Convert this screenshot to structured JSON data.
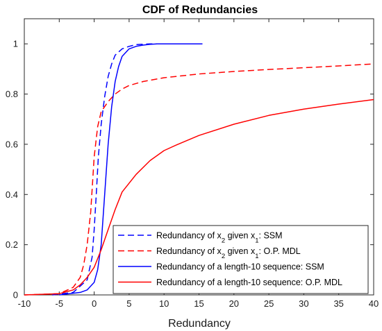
{
  "chart_data": {
    "type": "line",
    "title": "CDF of Redundancies",
    "xlabel": "Redundancy",
    "ylabel": "",
    "xlim": [
      -10,
      40
    ],
    "ylim": [
      0,
      1.1
    ],
    "xticks": [
      -10,
      -5,
      0,
      5,
      10,
      15,
      20,
      25,
      30,
      35,
      40
    ],
    "yticks": [
      0,
      0.2,
      0.4,
      0.6,
      0.8,
      1
    ],
    "ytick_labels": [
      "0",
      "0.2",
      "0.4",
      "0.6",
      "0.8",
      "1"
    ],
    "grid": false,
    "legend_position": "bottom-right",
    "series": [
      {
        "legend": {
          "pre": "Redundancy of x",
          "sub1": "2",
          "mid": " given x",
          "sub2": "1",
          "post": ": SSM"
        },
        "color": "#0000ff",
        "dash": "dashed",
        "x": [
          -6,
          -3,
          -1,
          -0.3,
          0,
          0.3,
          0.6,
          1,
          1.5,
          2,
          2.5,
          3,
          4,
          5,
          6,
          8,
          10,
          12,
          15.5
        ],
        "y": [
          0,
          0.01,
          0.06,
          0.15,
          0.26,
          0.4,
          0.55,
          0.68,
          0.79,
          0.87,
          0.92,
          0.955,
          0.98,
          0.99,
          0.997,
          1,
          1,
          1,
          1
        ]
      },
      {
        "legend": {
          "pre": "Redundancy of x",
          "sub1": "2",
          "mid": " given x",
          "sub2": "1",
          "post": ": O.P. MDL"
        },
        "color": "#ff0000",
        "dash": "dashed",
        "x": [
          -10,
          -5,
          -3,
          -2,
          -1.5,
          -1,
          -0.5,
          0,
          0.5,
          1,
          2,
          3,
          4,
          5,
          7,
          10,
          15,
          20,
          25,
          30,
          35,
          40
        ],
        "y": [
          0,
          0.005,
          0.03,
          0.07,
          0.12,
          0.2,
          0.33,
          0.55,
          0.67,
          0.73,
          0.77,
          0.8,
          0.82,
          0.834,
          0.85,
          0.865,
          0.88,
          0.89,
          0.898,
          0.905,
          0.912,
          0.92
        ]
      },
      {
        "legend": {
          "pre": "Redundancy of a length-10 sequence: SSM",
          "sub1": "",
          "mid": "",
          "sub2": "",
          "post": ""
        },
        "color": "#0000ff",
        "dash": "solid",
        "x": [
          -5,
          -2,
          -1,
          0,
          0.5,
          1,
          1.5,
          2,
          2.5,
          3,
          3.5,
          4,
          5,
          6,
          7,
          8,
          9,
          10,
          12,
          15.5
        ],
        "y": [
          0,
          0.01,
          0.02,
          0.05,
          0.1,
          0.2,
          0.4,
          0.6,
          0.75,
          0.85,
          0.91,
          0.95,
          0.98,
          0.99,
          0.995,
          0.998,
          1,
          1,
          1,
          1
        ]
      },
      {
        "legend": {
          "pre": "Redundancy of a length-10 sequence: O.P. MDL",
          "sub1": "",
          "mid": "",
          "sub2": "",
          "post": ""
        },
        "color": "#ff0000",
        "dash": "solid",
        "x": [
          -10,
          -5,
          -3,
          -2,
          -1,
          0,
          1,
          2,
          3,
          4,
          6,
          8,
          10,
          12,
          15,
          20,
          25,
          30,
          35,
          40
        ],
        "y": [
          0,
          0.005,
          0.02,
          0.04,
          0.07,
          0.11,
          0.18,
          0.26,
          0.34,
          0.41,
          0.48,
          0.535,
          0.575,
          0.6,
          0.635,
          0.68,
          0.715,
          0.74,
          0.76,
          0.778
        ]
      }
    ]
  }
}
